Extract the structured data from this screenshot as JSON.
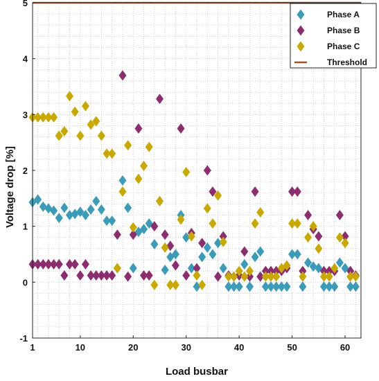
{
  "chart_data": {
    "type": "scatter",
    "xlabel": "Load busbar",
    "ylabel": "Voltage drop [%]",
    "xlim": [
      1,
      63
    ],
    "ylim": [
      -1,
      5
    ],
    "xticks": [
      1,
      10,
      20,
      30,
      40,
      50,
      60
    ],
    "yticks": [
      -1,
      0,
      1,
      2,
      3,
      4,
      5
    ],
    "grid": true,
    "legend_position": "top-right",
    "series": [
      {
        "name": "Phase A",
        "marker": "diamond",
        "color": "#3a9cb8",
        "points": [
          [
            1,
            1.43
          ],
          [
            2,
            1.48
          ],
          [
            3,
            1.35
          ],
          [
            4,
            1.32
          ],
          [
            5,
            1.28
          ],
          [
            6,
            1.15
          ],
          [
            7,
            1.33
          ],
          [
            8,
            1.2
          ],
          [
            9,
            1.22
          ],
          [
            10,
            1.26
          ],
          [
            11,
            1.2
          ],
          [
            12,
            1.3
          ],
          [
            13,
            1.45
          ],
          [
            14,
            1.3
          ],
          [
            15,
            1.1
          ],
          [
            16,
            1.1
          ],
          [
            17,
            0.25
          ],
          [
            18,
            1.82
          ],
          [
            19,
            1.33
          ],
          [
            20,
            0.25
          ],
          [
            21,
            0.9
          ],
          [
            22,
            0.95
          ],
          [
            23,
            1.05
          ],
          [
            24,
            0.68
          ],
          [
            25,
            1.45
          ],
          [
            26,
            0.22
          ],
          [
            27,
            0.45
          ],
          [
            28,
            0.5
          ],
          [
            29,
            1.2
          ],
          [
            30,
            0.8
          ],
          [
            31,
            0.25
          ],
          [
            32,
            -0.08
          ],
          [
            33,
            0.45
          ],
          [
            34,
            0.62
          ],
          [
            35,
            0.5
          ],
          [
            36,
            0.7
          ],
          [
            37,
            0.25
          ],
          [
            38,
            -0.08
          ],
          [
            39,
            -0.08
          ],
          [
            40,
            -0.08
          ],
          [
            41,
            0.32
          ],
          [
            42,
            -0.08
          ],
          [
            43,
            0.45
          ],
          [
            44,
            0.55
          ],
          [
            45,
            -0.08
          ],
          [
            46,
            -0.08
          ],
          [
            47,
            -0.08
          ],
          [
            48,
            -0.08
          ],
          [
            49,
            -0.08
          ],
          [
            50,
            0.5
          ],
          [
            51,
            0.5
          ],
          [
            52,
            -0.08
          ],
          [
            53,
            0.35
          ],
          [
            54,
            0.28
          ],
          [
            55,
            0.25
          ],
          [
            56,
            -0.08
          ],
          [
            57,
            -0.08
          ],
          [
            58,
            -0.08
          ],
          [
            59,
            0.35
          ],
          [
            60,
            0.25
          ],
          [
            61,
            -0.08
          ],
          [
            62,
            -0.08
          ]
        ]
      },
      {
        "name": "Phase B",
        "marker": "diamond",
        "color": "#8c2d70",
        "points": [
          [
            1,
            0.32
          ],
          [
            2,
            0.32
          ],
          [
            3,
            0.32
          ],
          [
            4,
            0.32
          ],
          [
            5,
            0.32
          ],
          [
            6,
            0.32
          ],
          [
            7,
            0.12
          ],
          [
            8,
            0.32
          ],
          [
            9,
            0.32
          ],
          [
            10,
            0.12
          ],
          [
            11,
            0.32
          ],
          [
            12,
            0.12
          ],
          [
            13,
            0.12
          ],
          [
            14,
            0.12
          ],
          [
            15,
            0.12
          ],
          [
            16,
            0.12
          ],
          [
            17,
            0.85
          ],
          [
            18,
            3.7
          ],
          [
            19,
            0.1
          ],
          [
            20,
            0.85
          ],
          [
            21,
            2.75
          ],
          [
            22,
            0.12
          ],
          [
            23,
            0.12
          ],
          [
            24,
            1.0
          ],
          [
            25,
            3.28
          ],
          [
            26,
            0.85
          ],
          [
            27,
            0.65
          ],
          [
            28,
            0.3
          ],
          [
            29,
            2.75
          ],
          [
            30,
            0.12
          ],
          [
            31,
            0.88
          ],
          [
            32,
            0.25
          ],
          [
            33,
            0.7
          ],
          [
            34,
            2.0
          ],
          [
            35,
            1.62
          ],
          [
            36,
            0.1
          ],
          [
            37,
            0.82
          ],
          [
            38,
            0.12
          ],
          [
            39,
            0.1
          ],
          [
            40,
            0.12
          ],
          [
            41,
            0.55
          ],
          [
            42,
            0.1
          ],
          [
            43,
            1.62
          ],
          [
            44,
            0.1
          ],
          [
            45,
            0.2
          ],
          [
            46,
            0.2
          ],
          [
            47,
            0.2
          ],
          [
            48,
            0.2
          ],
          [
            49,
            0.25
          ],
          [
            50,
            1.62
          ],
          [
            51,
            1.62
          ],
          [
            52,
            0.2
          ],
          [
            53,
            1.2
          ],
          [
            54,
            0.95
          ],
          [
            55,
            0.82
          ],
          [
            56,
            0.2
          ],
          [
            57,
            0.2
          ],
          [
            58,
            0.2
          ],
          [
            59,
            1.2
          ],
          [
            60,
            0.82
          ],
          [
            61,
            0.2
          ],
          [
            62,
            0.12
          ]
        ]
      },
      {
        "name": "Phase C",
        "marker": "diamond",
        "color": "#c9a800",
        "points": [
          [
            1,
            2.95
          ],
          [
            2,
            2.95
          ],
          [
            3,
            2.95
          ],
          [
            4,
            2.95
          ],
          [
            5,
            2.95
          ],
          [
            6,
            2.62
          ],
          [
            7,
            2.7
          ],
          [
            8,
            3.33
          ],
          [
            9,
            3.05
          ],
          [
            10,
            2.62
          ],
          [
            11,
            3.15
          ],
          [
            12,
            2.82
          ],
          [
            13,
            2.88
          ],
          [
            14,
            2.62
          ],
          [
            15,
            2.3
          ],
          [
            16,
            2.3
          ],
          [
            17,
            0.25
          ],
          [
            18,
            1.62
          ],
          [
            19,
            2.45
          ],
          [
            20,
            0.98
          ],
          [
            21,
            1.85
          ],
          [
            22,
            2.08
          ],
          [
            23,
            2.42
          ],
          [
            24,
            -0.05
          ],
          [
            25,
            1.45
          ],
          [
            26,
            0.62
          ],
          [
            27,
            -0.05
          ],
          [
            28,
            -0.05
          ],
          [
            29,
            1.12
          ],
          [
            30,
            1.97
          ],
          [
            31,
            0.82
          ],
          [
            32,
            0.12
          ],
          [
            33,
            -0.05
          ],
          [
            34,
            1.32
          ],
          [
            35,
            1.05
          ],
          [
            36,
            1.55
          ],
          [
            37,
            0.72
          ],
          [
            38,
            0.1
          ],
          [
            39,
            0.1
          ],
          [
            40,
            0.2
          ],
          [
            41,
            0.1
          ],
          [
            42,
            0.2
          ],
          [
            43,
            1.05
          ],
          [
            44,
            1.25
          ],
          [
            45,
            0.1
          ],
          [
            46,
            0.1
          ],
          [
            47,
            0.1
          ],
          [
            48,
            0.25
          ],
          [
            49,
            0.3
          ],
          [
            50,
            1.05
          ],
          [
            51,
            1.05
          ],
          [
            52,
            0.1
          ],
          [
            53,
            0.8
          ],
          [
            54,
            1.0
          ],
          [
            55,
            0.6
          ],
          [
            56,
            0.1
          ],
          [
            57,
            0.1
          ],
          [
            58,
            0.25
          ],
          [
            59,
            0.8
          ],
          [
            60,
            0.7
          ],
          [
            61,
            0.1
          ],
          [
            62,
            0.1
          ]
        ]
      },
      {
        "name": "Threshold",
        "marker": "line",
        "color": "#a0522d",
        "points": [
          [
            1,
            5
          ],
          [
            63,
            5
          ]
        ]
      }
    ]
  }
}
